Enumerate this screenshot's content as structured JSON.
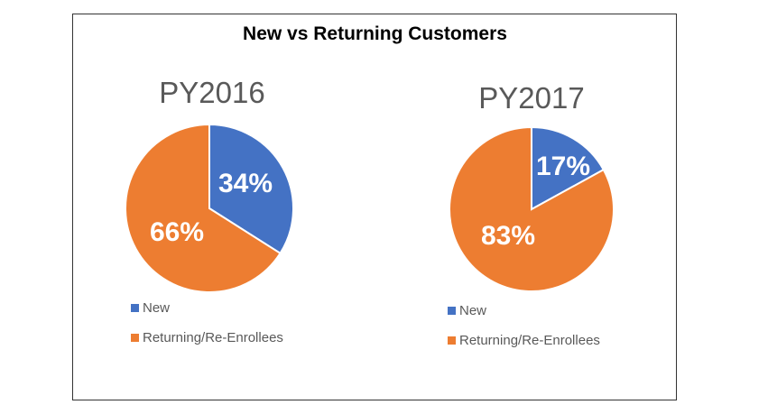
{
  "chart_data": [
    {
      "type": "pie",
      "title": "PY2016",
      "categories": [
        "New",
        "Returning/Re-Enrollees"
      ],
      "values": [
        34,
        66
      ],
      "labels": [
        "34%",
        "66%"
      ],
      "colors": [
        "#4472C4",
        "#ED7D31"
      ],
      "legend": "bottom-left"
    },
    {
      "type": "pie",
      "title": "PY2017",
      "categories": [
        "New",
        "Returning/Re-Enrollees"
      ],
      "values": [
        17,
        83
      ],
      "labels": [
        "17%",
        "83%"
      ],
      "colors": [
        "#4472C4",
        "#ED7D31"
      ],
      "legend": "bottom-left"
    }
  ],
  "title": "New vs Returning Customers"
}
